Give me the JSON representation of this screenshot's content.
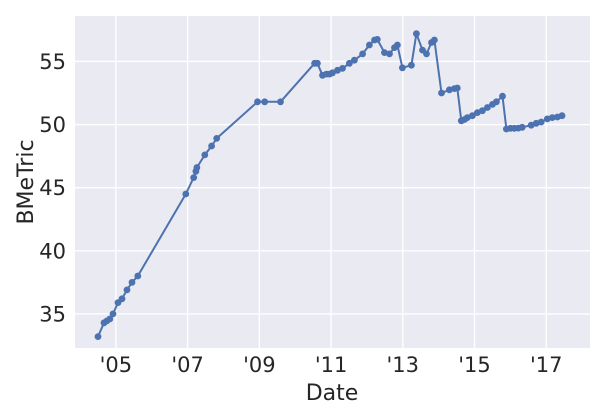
{
  "figure": {
    "background_color": "#ffffff",
    "plot_background_color": "#eaeaf2",
    "grid_color": "#ffffff",
    "line_color": "#4c72b0",
    "marker_color": "#4c72b0",
    "text_color": "#262626"
  },
  "chart_data": {
    "type": "line",
    "title": "",
    "xlabel": "Date",
    "ylabel": "BMeTric",
    "grid": true,
    "legend": false,
    "marker": "circle",
    "x_range": [
      2003.86,
      2018.22
    ],
    "y_range": [
      32.3,
      58.6
    ],
    "x_ticks": [
      {
        "value": 2005,
        "label": "'05"
      },
      {
        "value": 2007,
        "label": "'07"
      },
      {
        "value": 2009,
        "label": "'09"
      },
      {
        "value": 2011,
        "label": "'11"
      },
      {
        "value": 2013,
        "label": "'13"
      },
      {
        "value": 2015,
        "label": "'15"
      },
      {
        "value": 2017,
        "label": "'17"
      }
    ],
    "y_ticks": [
      {
        "value": 35,
        "label": "35"
      },
      {
        "value": 40,
        "label": "40"
      },
      {
        "value": 45,
        "label": "45"
      },
      {
        "value": 50,
        "label": "50"
      },
      {
        "value": 55,
        "label": "55"
      }
    ],
    "series": [
      {
        "name": "BMeTric",
        "points": [
          [
            2004.5,
            33.2
          ],
          [
            2004.67,
            34.3
          ],
          [
            2004.75,
            34.45
          ],
          [
            2004.83,
            34.6
          ],
          [
            2004.92,
            35.0
          ],
          [
            2005.06,
            35.9
          ],
          [
            2005.17,
            36.2
          ],
          [
            2005.31,
            36.9
          ],
          [
            2005.45,
            37.5
          ],
          [
            2005.61,
            38.0
          ],
          [
            2006.95,
            44.5
          ],
          [
            2007.17,
            45.8
          ],
          [
            2007.23,
            46.3
          ],
          [
            2007.26,
            46.6
          ],
          [
            2007.48,
            47.6
          ],
          [
            2007.67,
            48.3
          ],
          [
            2007.81,
            48.9
          ],
          [
            2008.95,
            51.8
          ],
          [
            2009.15,
            51.8
          ],
          [
            2009.59,
            51.8
          ],
          [
            2010.54,
            54.85
          ],
          [
            2010.62,
            54.85
          ],
          [
            2010.76,
            53.9
          ],
          [
            2010.87,
            54.0
          ],
          [
            2010.96,
            54.0
          ],
          [
            2011.04,
            54.1
          ],
          [
            2011.18,
            54.3
          ],
          [
            2011.32,
            54.45
          ],
          [
            2011.51,
            54.85
          ],
          [
            2011.65,
            55.1
          ],
          [
            2011.88,
            55.6
          ],
          [
            2012.07,
            56.3
          ],
          [
            2012.21,
            56.7
          ],
          [
            2012.29,
            56.75
          ],
          [
            2012.49,
            55.7
          ],
          [
            2012.63,
            55.6
          ],
          [
            2012.77,
            56.1
          ],
          [
            2012.85,
            56.3
          ],
          [
            2012.99,
            54.5
          ],
          [
            2013.24,
            54.7
          ],
          [
            2013.38,
            57.2
          ],
          [
            2013.55,
            55.9
          ],
          [
            2013.66,
            55.6
          ],
          [
            2013.8,
            56.5
          ],
          [
            2013.88,
            56.7
          ],
          [
            2014.08,
            52.5
          ],
          [
            2014.3,
            52.75
          ],
          [
            2014.44,
            52.85
          ],
          [
            2014.52,
            52.9
          ],
          [
            2014.63,
            50.3
          ],
          [
            2014.72,
            50.4
          ],
          [
            2014.8,
            50.55
          ],
          [
            2014.94,
            50.7
          ],
          [
            2015.08,
            50.95
          ],
          [
            2015.22,
            51.1
          ],
          [
            2015.36,
            51.35
          ],
          [
            2015.5,
            51.6
          ],
          [
            2015.61,
            51.8
          ],
          [
            2015.78,
            52.25
          ],
          [
            2015.89,
            49.65
          ],
          [
            2016.0,
            49.7
          ],
          [
            2016.11,
            49.7
          ],
          [
            2016.22,
            49.72
          ],
          [
            2016.33,
            49.78
          ],
          [
            2016.58,
            49.95
          ],
          [
            2016.72,
            50.1
          ],
          [
            2016.86,
            50.2
          ],
          [
            2017.03,
            50.45
          ],
          [
            2017.17,
            50.55
          ],
          [
            2017.31,
            50.6
          ],
          [
            2017.44,
            50.7
          ]
        ]
      }
    ]
  }
}
